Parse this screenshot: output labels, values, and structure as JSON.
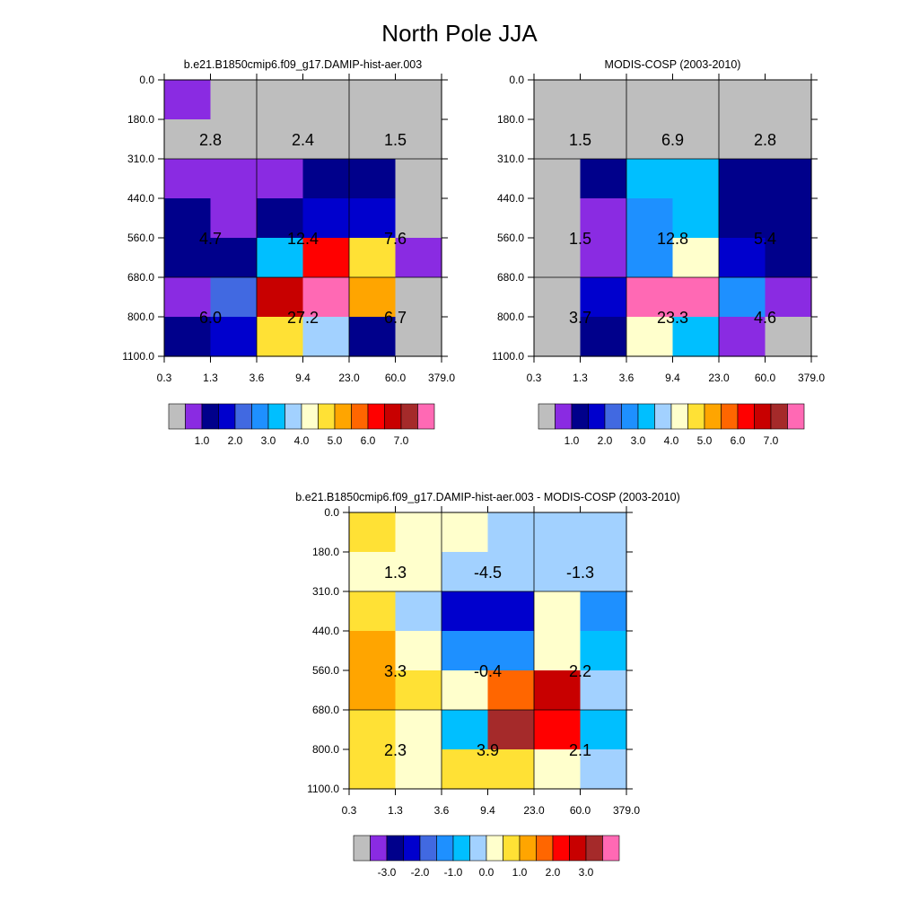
{
  "figure": {
    "title": "North Pole JJA"
  },
  "palettes": {
    "abs": [
      "#bebebe",
      "#8a2be2",
      "#00008b",
      "#0000cd",
      "#4169e1",
      "#1e90ff",
      "#00bfff",
      "#a2d1ff",
      "#ffffcc",
      "#ffe135",
      "#ffa500",
      "#ff6600",
      "#ff0000",
      "#c80000",
      "#a52a2a",
      "#ff69b4"
    ],
    "diff": [
      "#bebebe",
      "#8a2be2",
      "#00008b",
      "#0000cd",
      "#4169e1",
      "#1e90ff",
      "#00bfff",
      "#a2d1ff",
      "#ffffcc",
      "#ffe135",
      "#ffa500",
      "#ff6600",
      "#ff0000",
      "#c80000",
      "#a52a2a",
      "#ff69b4"
    ]
  },
  "chart_data": [
    {
      "type": "heatmap",
      "title": "b.e21.B1850cmip6.f09_g17.DAMIP-hist-aer.003",
      "x_ticks": [
        "0.3",
        "1.3",
        "3.6",
        "9.4",
        "23.0",
        "60.0",
        "379.0"
      ],
      "y_ticks": [
        "0.0",
        "180.0",
        "310.0",
        "440.0",
        "560.0",
        "680.0",
        "800.0",
        "1100.0"
      ],
      "cells": [
        [
          1,
          0,
          0,
          0,
          0,
          0
        ],
        [
          0,
          0,
          0,
          0,
          0,
          0
        ],
        [
          1,
          1,
          1,
          2,
          2,
          0
        ],
        [
          2,
          1,
          2,
          3,
          3,
          0
        ],
        [
          2,
          2,
          6,
          12,
          9,
          1
        ],
        [
          1,
          4,
          13,
          15,
          10,
          0
        ],
        [
          2,
          3,
          9,
          7,
          2,
          0
        ]
      ],
      "totals": [
        [
          "2.8",
          "2.4",
          "1.5"
        ],
        [
          "4.7",
          "12.4",
          "7.6"
        ],
        [
          "6.0",
          "27.2",
          "6.7"
        ]
      ],
      "colorbar": {
        "palette": "abs",
        "labels": [
          "1.0",
          "2.0",
          "3.0",
          "4.0",
          "5.0",
          "6.0",
          "7.0"
        ]
      }
    },
    {
      "type": "heatmap",
      "title": "MODIS-COSP (2003-2010)",
      "x_ticks": [
        "0.3",
        "1.3",
        "3.6",
        "9.4",
        "23.0",
        "60.0",
        "379.0"
      ],
      "y_ticks": [
        "0.0",
        "180.0",
        "310.0",
        "440.0",
        "560.0",
        "680.0",
        "800.0",
        "1100.0"
      ],
      "cells": [
        [
          0,
          0,
          0,
          0,
          0,
          0
        ],
        [
          0,
          0,
          0,
          0,
          0,
          0
        ],
        [
          0,
          2,
          6,
          6,
          2,
          2
        ],
        [
          0,
          1,
          5,
          6,
          2,
          2
        ],
        [
          0,
          1,
          5,
          8,
          3,
          2
        ],
        [
          0,
          3,
          15,
          15,
          5,
          1
        ],
        [
          0,
          2,
          8,
          6,
          1,
          0
        ]
      ],
      "totals": [
        [
          "1.5",
          "6.9",
          "2.8"
        ],
        [
          "1.5",
          "12.8",
          "5.4"
        ],
        [
          "3.7",
          "23.3",
          "4.6"
        ]
      ],
      "colorbar": {
        "palette": "abs",
        "labels": [
          "1.0",
          "2.0",
          "3.0",
          "4.0",
          "5.0",
          "6.0",
          "7.0"
        ]
      }
    },
    {
      "type": "heatmap",
      "title": "b.e21.B1850cmip6.f09_g17.DAMIP-hist-aer.003 - MODIS-COSP (2003-2010)",
      "x_ticks": [
        "0.3",
        "1.3",
        "3.6",
        "9.4",
        "23.0",
        "60.0",
        "379.0"
      ],
      "y_ticks": [
        "0.0",
        "180.0",
        "310.0",
        "440.0",
        "560.0",
        "680.0",
        "800.0",
        "1100.0"
      ],
      "cells": [
        [
          9,
          8,
          8,
          7,
          7,
          7
        ],
        [
          8,
          8,
          7,
          7,
          7,
          7
        ],
        [
          9,
          7,
          3,
          3,
          8,
          5
        ],
        [
          10,
          8,
          5,
          5,
          8,
          6
        ],
        [
          10,
          9,
          8,
          11,
          13,
          7
        ],
        [
          9,
          8,
          6,
          14,
          12,
          6
        ],
        [
          9,
          8,
          9,
          9,
          8,
          7
        ]
      ],
      "totals": [
        [
          "1.3",
          "-4.5",
          "-1.3"
        ],
        [
          "3.3",
          "-0.4",
          "2.2"
        ],
        [
          "2.3",
          "3.9",
          "2.1"
        ]
      ],
      "colorbar": {
        "palette": "diff",
        "labels": [
          "-3.0",
          "-2.0",
          "-1.0",
          "0.0",
          "1.0",
          "2.0",
          "3.0"
        ]
      }
    }
  ]
}
